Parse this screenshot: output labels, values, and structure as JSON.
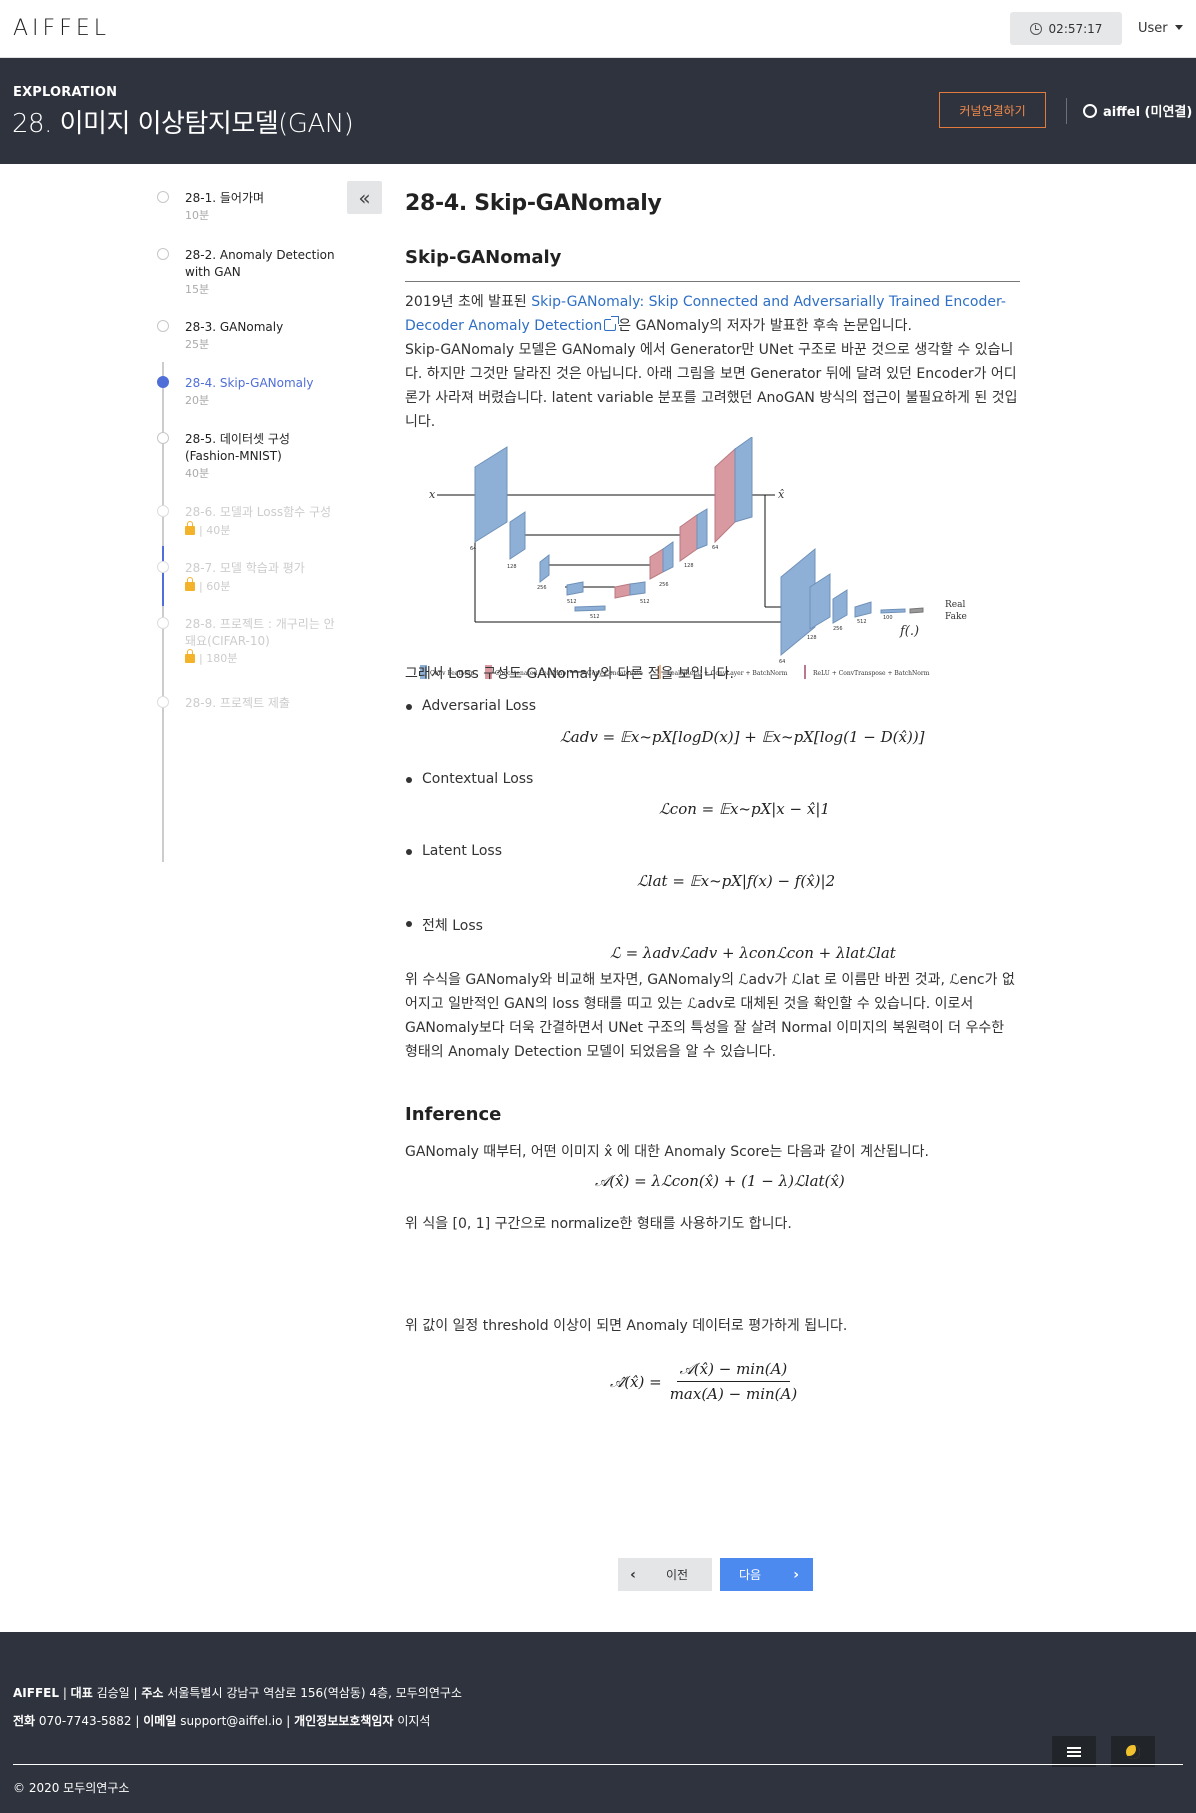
{
  "header": {
    "logo": "AIFFEL",
    "timer": "02:57:17",
    "user_menu": "User"
  },
  "hero": {
    "eyebrow": "EXPLORATION",
    "title": "28. 이미지 이상탐지모델(GAN)",
    "kernel_button": "커널연결하기",
    "connection_status": "aiffel (미연결)"
  },
  "sidebar": {
    "collapse_icon": "«",
    "items": [
      {
        "title": "28-1. 들어가며",
        "time": "10분",
        "state": "done"
      },
      {
        "title": "28-2. Anomaly Detection with GAN",
        "time": "15분",
        "state": "done"
      },
      {
        "title": "28-3. GANomaly",
        "time": "25분",
        "state": "done"
      },
      {
        "title": "28-4. Skip-GANomaly",
        "time": "20분",
        "state": "active"
      },
      {
        "title": "28-5. 데이터셋 구성 (Fashion-MNIST)",
        "time": "40분",
        "state": "done"
      },
      {
        "title": "28-6. 모델과 Loss함수 구성",
        "time": "| 40분",
        "state": "locked"
      },
      {
        "title": "28-7. 모델 학습과 평가",
        "time": "| 60분",
        "state": "locked"
      },
      {
        "title": "28-8. 프로젝트 : 개구리는 안 돼요(CIFAR-10)",
        "time": "| 180분",
        "state": "locked"
      },
      {
        "title": "28-9. 프로젝트 제출",
        "time": "",
        "state": "locked-final"
      }
    ]
  },
  "article": {
    "title": "28-4. Skip-GANomaly",
    "section1": "Skip-GANomaly",
    "intro_prefix": "2019년 초에 발표된 ",
    "intro_link": "Skip-GANomaly: Skip Connected and Adversarially Trained Encoder-Decoder Anomaly Detection",
    "intro_suffix": "은 GANomaly의 저자가 발표한 후속 논문입니다.",
    "intro_body": "Skip-GANomaly 모델은 GANomaly 에서 Generator만 UNet 구조로 바꾼 것으로 생각할 수 있습니다. 하지만 그것만 달라진 것은 아닙니다. 아래 그림을 보면 Generator 뒤에 달려 있던 Encoder가 어디론가 사라져 버렸습니다. latent variable 분포를 고려했던 AnoGAN 방식의 접근이 불필요하게 된 것입니다.",
    "diagram": {
      "input_label": "x",
      "output_label": "x̂",
      "f_label": "f(.)",
      "real": "Real",
      "fake": "Fake",
      "legend": [
        "Conv FeatMap",
        "Concatenated FeatMap",
        "Copy-Concatenate",
        "LeakyReLU + ConvLayer + BatchNorm",
        "ReLU + ConvTranspose + BatchNorm"
      ],
      "sizes": [
        "64",
        "128",
        "256",
        "512",
        "512",
        "512",
        "256",
        "128",
        "64",
        "64",
        "128",
        "256",
        "512",
        "100"
      ]
    },
    "loss_intro": "그래서 Loss 구성도 GANomaly와 다른 점을 보입니다.",
    "losses": [
      "Adversarial Loss",
      "Contextual Loss",
      "Latent Loss",
      "전체 Loss"
    ],
    "eq_adv": "ℒadv = 𝔼x~pX[logD(x)] + 𝔼x~pX[log(1 − D(x̂))]",
    "eq_con": "ℒcon = 𝔼x~pX|x − x̂|1",
    "eq_lat": "ℒlat = 𝔼x~pX|f(x) − f(x̂)|2",
    "eq_total": "ℒ = λadvℒadv + λconℒcon + λlatℒlat",
    "compare": "위 수식을 GANomaly와 비교해 보자면, GANomaly의 ℒadv가 ℒlat 로 이름만 바뀐 것과, ℒenc가 없어지고 일반적인 GAN의 loss 형태를 띠고 있는 ℒadv로 대체된 것을 확인할 수 있습니다. 이로서 GANomaly보다 더욱 간결하면서 UNet 구조의 특성을 잘 살려 Normal 이미지의 복원력이 더 우수한 형태의 Anomaly Detection 모델이 되었음을 알 수 있습니다.",
    "section2": "Inference",
    "inference_intro": "GANomaly 때부터, 어떤 이미지 x̂ 에 대한 Anomaly Score는 다음과 같이 계산됩니다.",
    "eq_score": "𝒜(x̂) = λℒcon(x̂) + (1 − λ)ℒlat(x̂)",
    "normalize": "위 식을 [0, 1] 구간으로 normalize한 형태를 사용하기도 합니다.",
    "eq_norm_lhs": "𝒜̂(x̂) =",
    "eq_norm_num": "𝒜(x̂) − min(A)",
    "eq_norm_den": "max(A) − min(A)",
    "threshold": "위 값이 일정 threshold 이상이 되면 Anomaly 데이터로 평가하게 됩니다."
  },
  "pager": {
    "prev": "이전",
    "next": "다음"
  },
  "footer": {
    "line1": {
      "brand": "AIFFEL",
      "ceo_label": "대표",
      "ceo": "김승일",
      "addr_label": "주소",
      "addr": "서울특별시 강남구 역삼로 156(역삼동) 4층, 모두의연구소"
    },
    "line2": {
      "tel_label": "전화",
      "tel": "070-7743-5882",
      "email_label": "이메일",
      "email": "support@aiffel.io",
      "privacy_label": "개인정보보호책임자",
      "privacy": "이지석"
    },
    "copyright": "© 2020 모두의연구소"
  },
  "colors": {
    "hero_bg": "#2f333d",
    "accent": "#4f6ed8",
    "kernel_orange": "#f08a4b",
    "next_button": "#4d8af0"
  }
}
